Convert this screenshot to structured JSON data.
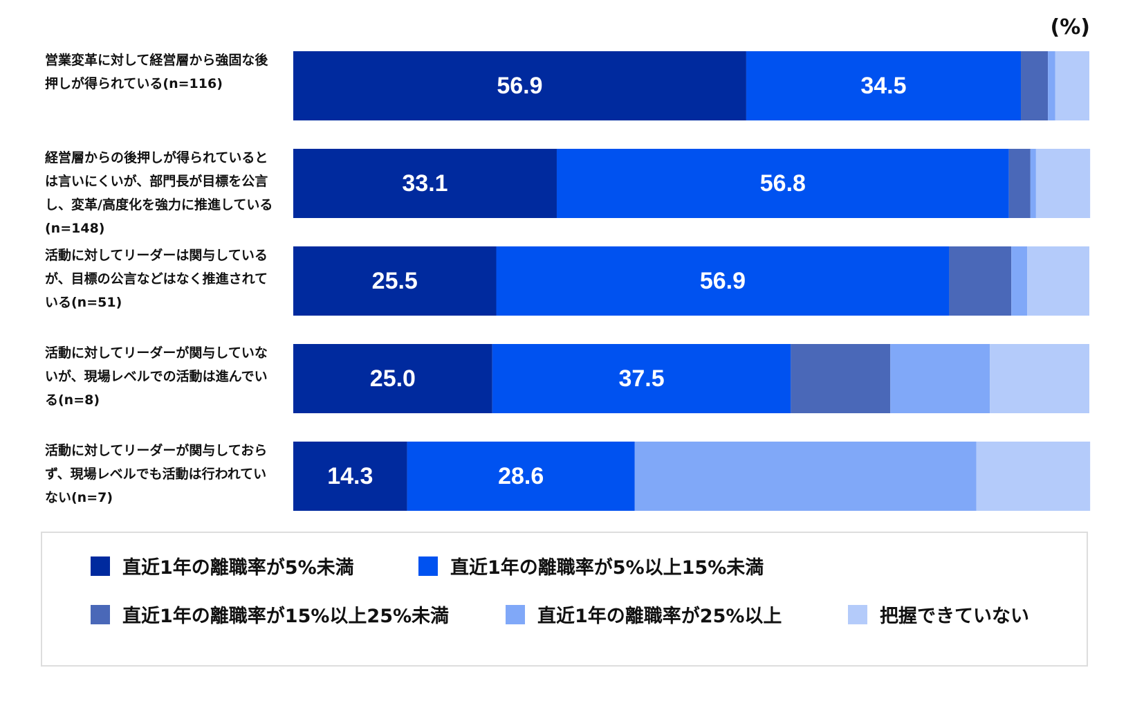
{
  "chart_data": {
    "type": "stacked-barh",
    "unit_label": "(%)",
    "categories": [
      "営業変革に対して経営層から強固な後押しが得られている(n=116)",
      "経営層からの後押しが得られているとは言いにくいが、部門長が目標を公言し、変革/高度化を強力に推進している(n=148)",
      "活動に対してリーダーは関与しているが、目標の公言などはなく推進されている(n=51)",
      "活動に対してリーダーが関与していないが、現場レベルでの活動は進んでいる(n=8)",
      "活動に対してリーダーが関与しておらず、現場レベルでも活動は行われていない(n=7)"
    ],
    "series": [
      {
        "name": "直近1年の離職率が5%未満",
        "color": "#002a9e",
        "values": [
          56.9,
          33.1,
          25.5,
          25.0,
          14.3
        ],
        "value_labels": [
          "56.9",
          "33.1",
          "25.5",
          "25.0",
          "14.3"
        ]
      },
      {
        "name": "直近1年の離職率が5%以上15%未満",
        "color": "#0052f0",
        "values": [
          34.5,
          56.8,
          56.9,
          37.5,
          28.6
        ],
        "value_labels": [
          "34.5",
          "56.8",
          "56.9",
          "37.5",
          "28.6"
        ]
      },
      {
        "name": "直近1年の離職率が15%以上25%未満",
        "color": "#4a68b8",
        "values": [
          3.4,
          2.7,
          7.8,
          12.5,
          0
        ]
      },
      {
        "name": "直近1年の離職率が25%以上",
        "color": "#80a8f8",
        "values": [
          0.9,
          0.7,
          2.0,
          12.5,
          42.9
        ]
      },
      {
        "name": "把握できていない",
        "color": "#b4cbfa",
        "values": [
          4.3,
          6.8,
          7.8,
          12.5,
          14.3
        ]
      }
    ],
    "xlim": [
      0,
      100
    ]
  }
}
